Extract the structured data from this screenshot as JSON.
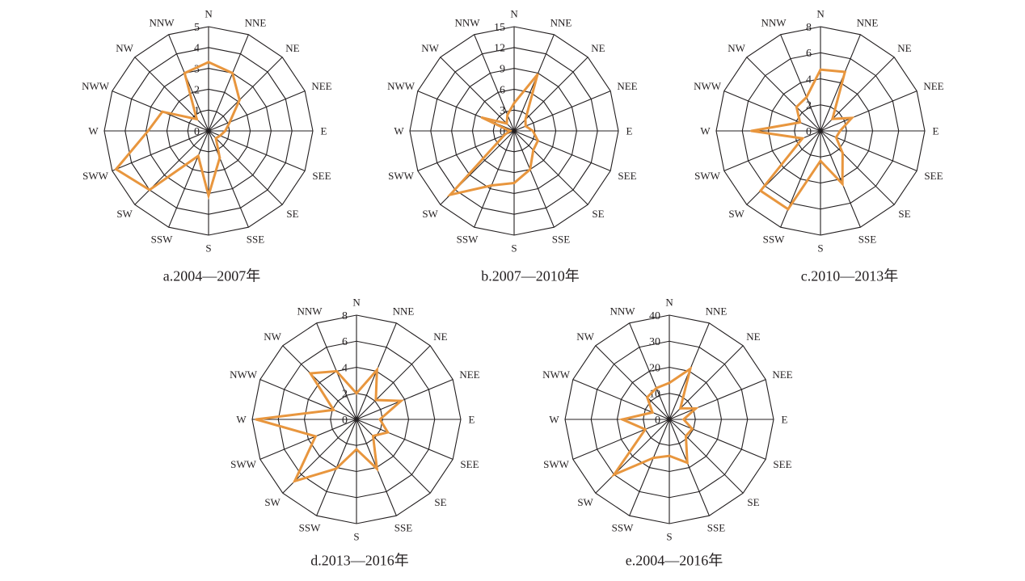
{
  "colors": {
    "series_line": "#e8963e",
    "grid": "#231f20",
    "background": "#ffffff"
  },
  "chart_data": [
    {
      "type": "line",
      "polar": true,
      "grid": true,
      "caption": "a.2004—2007年",
      "categories": [
        "N",
        "NNE",
        "NE",
        "NEE",
        "E",
        "SEE",
        "SE",
        "SSE",
        "S",
        "SSW",
        "SW",
        "SWW",
        "W",
        "NWW",
        "NW",
        "NNW"
      ],
      "ticks": [
        0,
        1,
        2,
        3,
        4,
        5
      ],
      "rlim": [
        0,
        5
      ],
      "values": [
        3.3,
        3.0,
        2.1,
        1.1,
        0.8,
        0.6,
        0.5,
        1.4,
        3.1,
        1.3,
        4.0,
        4.8,
        2.9,
        2.4,
        0.8,
        3.0
      ]
    },
    {
      "type": "line",
      "polar": true,
      "grid": true,
      "caption": "b.2007—2010年",
      "categories": [
        "N",
        "NNE",
        "NE",
        "NEE",
        "E",
        "SEE",
        "SE",
        "SSE",
        "S",
        "SSW",
        "SW",
        "SWW",
        "W",
        "NWW",
        "NW",
        "NNW"
      ],
      "ticks": [
        0,
        3,
        6,
        9,
        12,
        15
      ],
      "rlim": [
        0,
        15
      ],
      "values": [
        4.0,
        8.8,
        2.3,
        1.8,
        2.7,
        3.7,
        3.9,
        6.0,
        7.5,
        8.5,
        13.0,
        1.5,
        0.6,
        5.0,
        1.5,
        2.5
      ]
    },
    {
      "type": "line",
      "polar": true,
      "grid": true,
      "caption": "c.2010—2013年",
      "categories": [
        "N",
        "NNE",
        "NE",
        "NEE",
        "E",
        "SEE",
        "SE",
        "SSE",
        "S",
        "SSW",
        "SW",
        "SWW",
        "W",
        "NWW",
        "NW",
        "NNW"
      ],
      "ticks": [
        0,
        2,
        4,
        6,
        8
      ],
      "rlim": [
        0,
        8
      ],
      "values": [
        4.7,
        4.9,
        1.3,
        2.6,
        1.5,
        1.3,
        2.4,
        4.4,
        2.3,
        6.5,
        6.5,
        1.5,
        5.3,
        1.7,
        2.6,
        2.8
      ]
    },
    {
      "type": "line",
      "polar": true,
      "grid": true,
      "caption": "d.2013—2016年",
      "categories": [
        "N",
        "NNE",
        "NE",
        "NEE",
        "E",
        "SEE",
        "SE",
        "SSE",
        "S",
        "SSW",
        "SW",
        "SWW",
        "W",
        "NWW",
        "NW",
        "NNW"
      ],
      "ticks": [
        0,
        2,
        4,
        6,
        8
      ],
      "rlim": [
        0,
        8
      ],
      "values": [
        2.0,
        4.1,
        2.1,
        3.7,
        1.8,
        2.6,
        1.8,
        4.1,
        2.3,
        4.1,
        6.7,
        3.4,
        7.7,
        1.9,
        5.0,
        4.0
      ]
    },
    {
      "type": "line",
      "polar": true,
      "grid": true,
      "caption": "e.2004—2016年",
      "categories": [
        "N",
        "NNE",
        "NE",
        "NEE",
        "E",
        "SEE",
        "SE",
        "SSE",
        "S",
        "SSW",
        "SW",
        "SWW",
        "W",
        "NWW",
        "NW",
        "NNW"
      ],
      "ticks": [
        0,
        10,
        20,
        30,
        40
      ],
      "rlim": [
        0,
        40
      ],
      "values": [
        14,
        21,
        6,
        11,
        5.5,
        9.5,
        9,
        18,
        14,
        16,
        30,
        10,
        18,
        7,
        12,
        13
      ]
    }
  ]
}
